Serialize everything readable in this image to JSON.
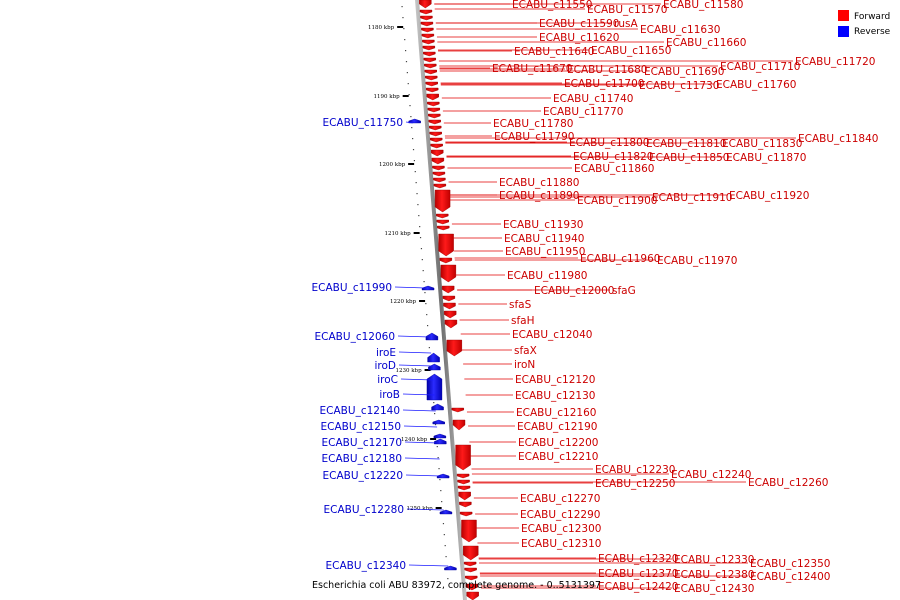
{
  "caption": "Escherichia coli ABU 83972, complete genome. - 0..5131397",
  "legend": [
    {
      "label": "Forward",
      "color": "#ff0000"
    },
    {
      "label": "Reverse",
      "color": "#0000ff"
    }
  ],
  "axis_ticks": [
    "1180 kbp",
    "1190 kbp",
    "1200 kbp",
    "1210 kbp",
    "1220 kbp",
    "1230 kbp",
    "1240 kbp",
    "1250 kbp"
  ],
  "forward_labels": [
    "ECABU_c11550",
    "ECABU_c11570",
    "ECABU_c11580",
    "ECABU_c11590",
    "rusA",
    "ECABU_c11630",
    "ECABU_c11620",
    "ECABU_c11660",
    "ECABU_c11640",
    "ECABU_c11650",
    "ECABU_c11710",
    "ECABU_c11720",
    "ECABU_c11670",
    "ECABU_c11680",
    "ECABU_c11690",
    "ECABU_c11700",
    "ECABU_c11730",
    "ECABU_c11760",
    "ECABU_c11740",
    "ECABU_c11770",
    "ECABU_c11780",
    "ECABU_c11840",
    "ECABU_c11790",
    "ECABU_c11800",
    "ECABU_c11810",
    "ECABU_c11830",
    "ECABU_c11820",
    "ECABU_c11850",
    "ECABU_c11870",
    "ECABU_c11860",
    "ECABU_c11880",
    "ECABU_c11890",
    "ECABU_c11920",
    "ECABU_c11900",
    "ECABU_c11910",
    "ECABU_c11930",
    "ECABU_c11940",
    "ECABU_c11950",
    "ECABU_c11960",
    "ECABU_c11970",
    "ECABU_c11980",
    "ECABU_c12000",
    "sfaG",
    "sfaS",
    "sfaH",
    "ECABU_c12040",
    "sfaX",
    "iroN",
    "ECABU_c12120",
    "ECABU_c12130",
    "ECABU_c12160",
    "ECABU_c12190",
    "ECABU_c12200",
    "ECABU_c12210",
    "ECABU_c12230",
    "ECABU_c12240",
    "ECABU_c12260",
    "ECABU_c12250",
    "ECABU_c12270",
    "ECABU_c12290",
    "ECABU_c12300",
    "ECABU_c12310",
    "ECABU_c12320",
    "ECABU_c12330",
    "ECABU_c12350",
    "ECABU_c12370",
    "ECABU_c12380",
    "ECABU_c12400",
    "ECABU_c12420",
    "ECABU_c12430"
  ],
  "reverse_labels": [
    "ECABU_c11750",
    "ECABU_c11990",
    "ECABU_c12060",
    "iroE",
    "iroD",
    "iroC",
    "iroB",
    "ECABU_c12140",
    "ECABU_c12150",
    "ECABU_c12170",
    "ECABU_c12180",
    "ECABU_c12220",
    "ECABU_c12280",
    "ECABU_c12340"
  ]
}
